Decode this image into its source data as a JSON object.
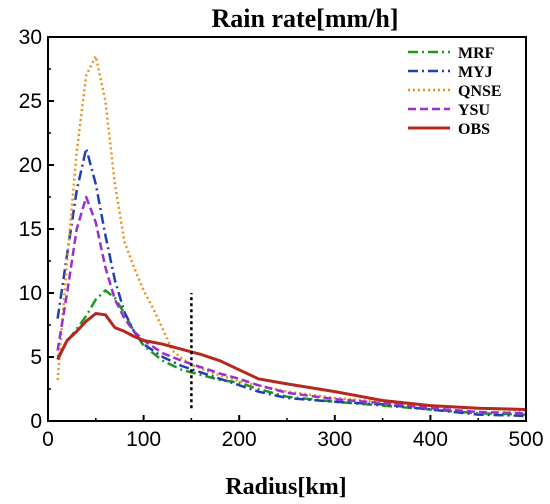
{
  "chart_data": {
    "type": "line",
    "title": "Rain rate[mm/h]",
    "xlabel": "Radius[km]",
    "ylabel": "",
    "xlim": [
      0,
      500
    ],
    "ylim": [
      0,
      30
    ],
    "x_ticks": [
      0,
      100,
      200,
      300,
      400,
      500
    ],
    "y_ticks": [
      0,
      5,
      10,
      15,
      20,
      25,
      30
    ],
    "grid": false,
    "legend_position": "top-right",
    "reference_line": {
      "x": 150,
      "y_range": [
        1,
        10
      ],
      "style": "dotted",
      "color": "#000000"
    },
    "series": [
      {
        "name": "MRF",
        "color": "#1a9a1a",
        "dash": "dashdot",
        "x": [
          10,
          20,
          30,
          40,
          50,
          60,
          70,
          80,
          90,
          100,
          120,
          140,
          160,
          180,
          200,
          220,
          250,
          300,
          350,
          400,
          450,
          500
        ],
        "y": [
          5.0,
          6.2,
          7.2,
          8.2,
          9.5,
          10.2,
          9.6,
          8.4,
          7.0,
          5.9,
          4.7,
          4.0,
          3.6,
          3.2,
          3.0,
          2.5,
          1.9,
          1.5,
          1.2,
          0.9,
          0.6,
          0.5
        ]
      },
      {
        "name": "MYJ",
        "color": "#1f3fb5",
        "dash": "dashdot",
        "x": [
          10,
          20,
          30,
          40,
          50,
          60,
          70,
          80,
          90,
          100,
          120,
          140,
          160,
          180,
          200,
          220,
          250,
          300,
          350,
          400,
          450,
          500
        ],
        "y": [
          8.0,
          13.0,
          18.0,
          21.3,
          18.5,
          14.5,
          11.0,
          8.5,
          7.0,
          6.0,
          5.0,
          4.3,
          3.8,
          3.3,
          2.8,
          2.3,
          1.8,
          1.5,
          1.3,
          0.9,
          0.5,
          0.4
        ]
      },
      {
        "name": "QNSE",
        "color": "#f0901a",
        "dash": "dotted",
        "x": [
          10,
          20,
          30,
          40,
          50,
          60,
          70,
          80,
          90,
          100,
          110,
          120,
          130,
          140,
          150,
          170,
          200,
          250,
          300,
          350,
          400,
          450,
          500
        ],
        "y": [
          3.2,
          12.5,
          21.0,
          27.0,
          28.5,
          25.0,
          18.5,
          14.0,
          12.0,
          10.2,
          8.8,
          7.2,
          5.5,
          4.9,
          4.4,
          3.8,
          3.1,
          2.3,
          1.8,
          1.5,
          1.2,
          1.0,
          0.8
        ]
      },
      {
        "name": "YSU",
        "color": "#9a2fd0",
        "dash": "dashed",
        "x": [
          10,
          20,
          30,
          40,
          50,
          60,
          70,
          80,
          90,
          100,
          120,
          140,
          160,
          180,
          200,
          220,
          250,
          300,
          350,
          400,
          450,
          500
        ],
        "y": [
          5.5,
          10.0,
          15.0,
          17.5,
          15.5,
          12.0,
          9.5,
          8.0,
          7.0,
          6.3,
          5.3,
          4.7,
          4.2,
          3.7,
          3.3,
          2.8,
          2.2,
          1.7,
          1.4,
          1.0,
          0.7,
          0.6
        ]
      },
      {
        "name": "OBS",
        "color": "#b5281e",
        "dash": "solid",
        "x": [
          10,
          20,
          30,
          40,
          50,
          60,
          70,
          80,
          90,
          100,
          120,
          140,
          160,
          180,
          200,
          220,
          250,
          300,
          350,
          400,
          450,
          500
        ],
        "y": [
          4.8,
          6.3,
          7.0,
          7.8,
          8.4,
          8.3,
          7.3,
          7.0,
          6.6,
          6.3,
          6.0,
          5.6,
          5.2,
          4.7,
          4.0,
          3.3,
          2.9,
          2.3,
          1.6,
          1.2,
          1.0,
          0.9
        ]
      }
    ]
  }
}
